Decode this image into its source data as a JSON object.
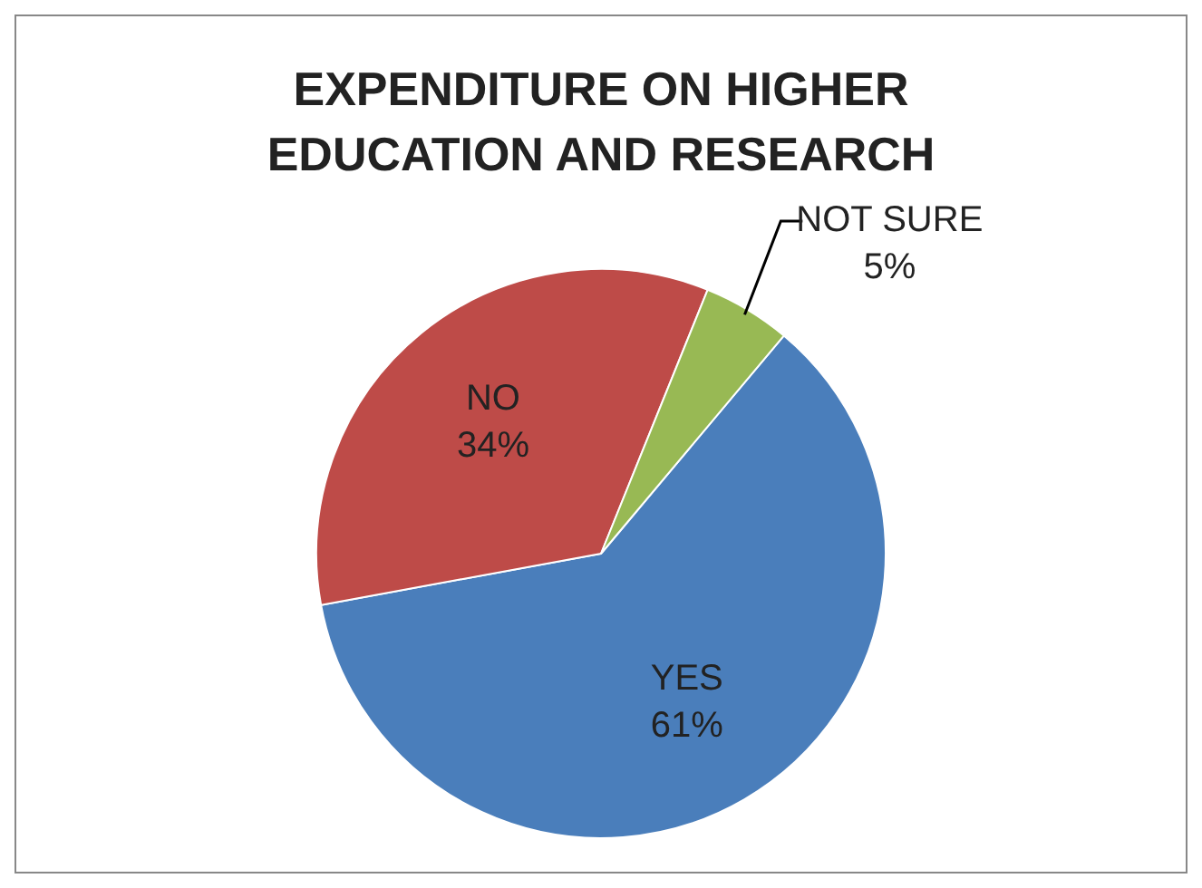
{
  "chart_data": {
    "type": "pie",
    "title": "EXPENDITURE ON HIGHER EDUCATION AND RESEARCH",
    "categories": [
      "YES",
      "NO",
      "NOT SURE"
    ],
    "values": [
      61,
      34,
      5
    ],
    "colors": [
      "#4a7ebb",
      "#be4b48",
      "#98b954"
    ],
    "value_labels": [
      "61%",
      "34%",
      "5%"
    ],
    "legend": false
  }
}
